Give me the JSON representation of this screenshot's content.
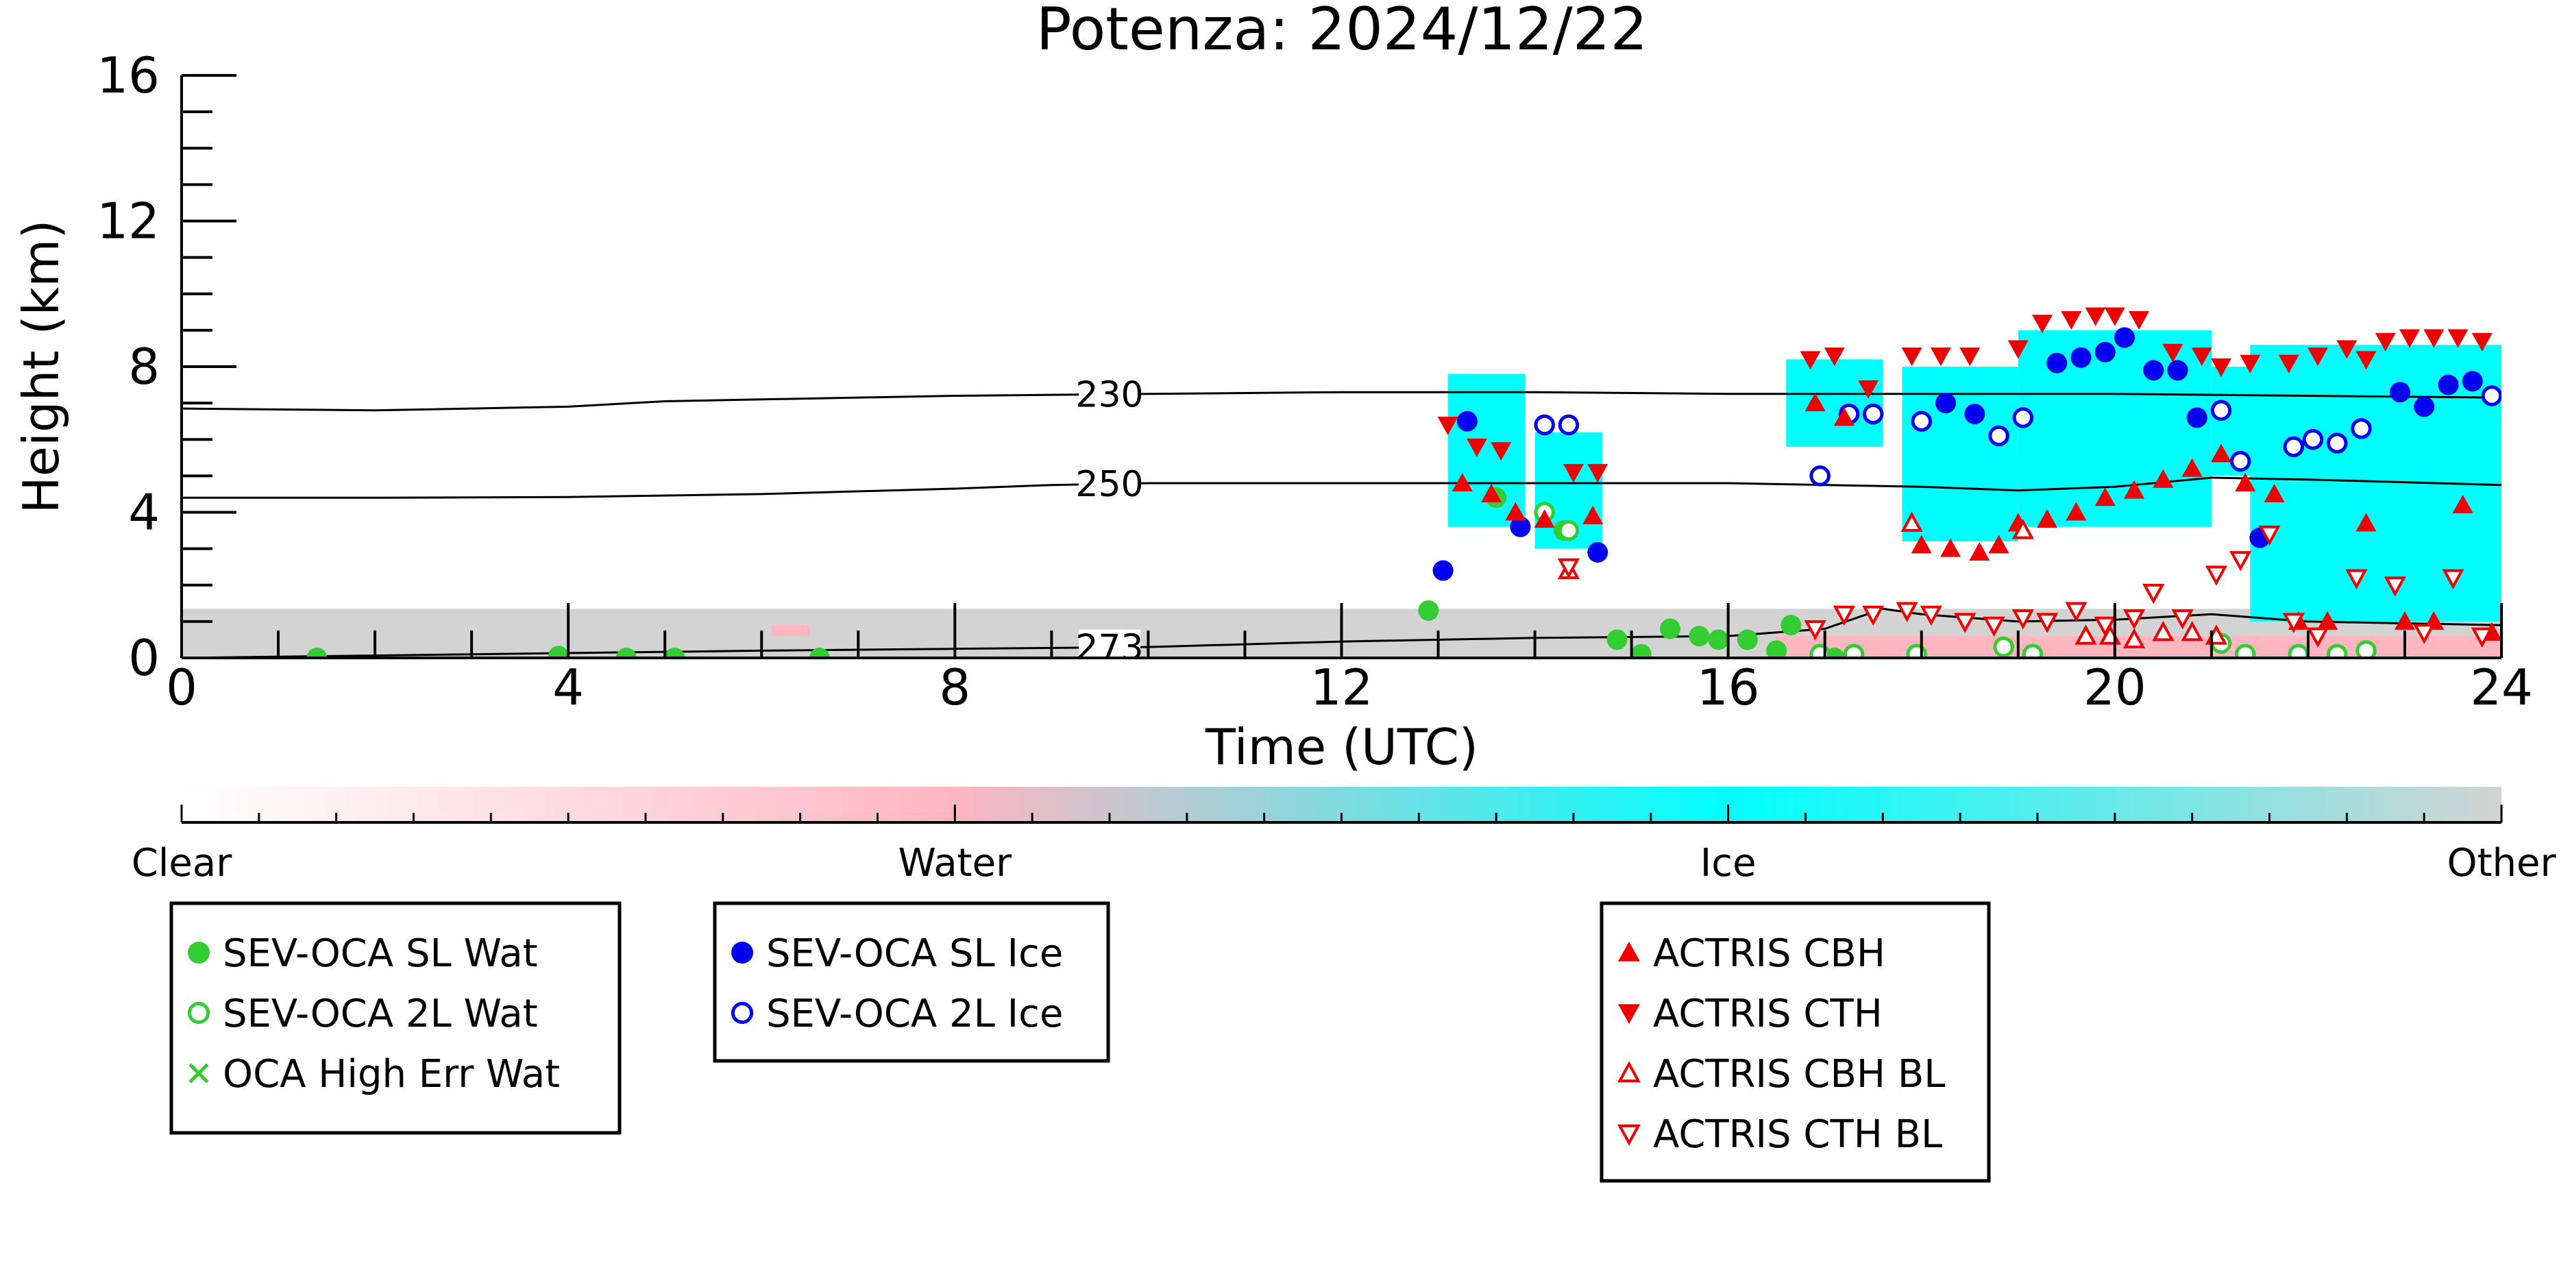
{
  "chart_data": {
    "type": "scatter",
    "title": "Potenza: 2024/12/22",
    "xlabel": "Time (UTC)",
    "ylabel": "Height (km)",
    "xlim": [
      0,
      24
    ],
    "ylim": [
      0,
      16
    ],
    "xticks": [
      0,
      4,
      8,
      12,
      16,
      20,
      24
    ],
    "xtick_labels": [
      "0",
      "4",
      "8",
      "12",
      "16",
      "20",
      "24"
    ],
    "yticks": [
      0,
      4,
      8,
      12,
      16
    ],
    "ytick_labels": [
      "0",
      "4",
      "8",
      "12",
      "16"
    ],
    "grid": false,
    "contours": [
      {
        "label": "230",
        "label_x": 9.6,
        "points": [
          [
            0,
            6.85
          ],
          [
            2,
            6.8
          ],
          [
            4,
            6.9
          ],
          [
            5,
            7.05
          ],
          [
            6,
            7.1
          ],
          [
            8,
            7.2
          ],
          [
            10,
            7.25
          ],
          [
            12,
            7.3
          ],
          [
            14,
            7.3
          ],
          [
            16,
            7.25
          ],
          [
            18,
            7.25
          ],
          [
            20,
            7.25
          ],
          [
            22,
            7.2
          ],
          [
            24,
            7.15
          ]
        ]
      },
      {
        "label": "250",
        "label_x": 9.6,
        "points": [
          [
            0,
            4.4
          ],
          [
            2,
            4.4
          ],
          [
            4,
            4.42
          ],
          [
            6,
            4.5
          ],
          [
            8,
            4.65
          ],
          [
            9,
            4.75
          ],
          [
            10,
            4.8
          ],
          [
            12,
            4.8
          ],
          [
            14,
            4.8
          ],
          [
            16,
            4.8
          ],
          [
            18,
            4.7
          ],
          [
            19,
            4.6
          ],
          [
            20,
            4.7
          ],
          [
            21,
            4.95
          ],
          [
            22,
            4.9
          ],
          [
            24,
            4.75
          ]
        ]
      },
      {
        "label": "273",
        "label_x": 9.6,
        "points": [
          [
            0,
            0.0
          ],
          [
            3,
            0.1
          ],
          [
            6,
            0.2
          ],
          [
            8,
            0.25
          ],
          [
            10,
            0.3
          ],
          [
            12,
            0.45
          ],
          [
            14,
            0.55
          ],
          [
            16,
            0.6
          ],
          [
            17,
            0.8
          ],
          [
            17.6,
            1.35
          ],
          [
            18,
            1.2
          ],
          [
            19,
            1.0
          ],
          [
            20,
            1.05
          ],
          [
            21,
            1.2
          ],
          [
            22,
            1.0
          ],
          [
            24,
            0.9
          ]
        ]
      }
    ],
    "cloud_class_regions": [
      {
        "class": "Other",
        "x0": 0,
        "x1": 24,
        "y0": 0,
        "y1": 1.35
      },
      {
        "class": "Ice",
        "x0": 13.1,
        "x1": 13.9,
        "y0": 3.6,
        "y1": 7.8
      },
      {
        "class": "Ice",
        "x0": 14.0,
        "x1": 14.7,
        "y0": 3.0,
        "y1": 6.2
      },
      {
        "class": "Ice",
        "x0": 16.6,
        "x1": 17.6,
        "y0": 5.8,
        "y1": 8.2
      },
      {
        "class": "Ice",
        "x0": 17.8,
        "x1": 19.0,
        "y0": 3.2,
        "y1": 8.0
      },
      {
        "class": "Ice",
        "x0": 19.0,
        "x1": 21.0,
        "y0": 3.6,
        "y1": 9.0
      },
      {
        "class": "Ice",
        "x0": 21.0,
        "x1": 21.4,
        "y0": 5.0,
        "y1": 8.0
      },
      {
        "class": "Ice",
        "x0": 21.4,
        "x1": 24.0,
        "y0": 1.0,
        "y1": 8.6
      },
      {
        "class": "Water",
        "x0": 6.1,
        "x1": 6.5,
        "y0": 0.6,
        "y1": 0.9
      },
      {
        "class": "Water",
        "x0": 16.5,
        "x1": 24.0,
        "y0": 0.0,
        "y1": 0.6
      }
    ],
    "series": [
      {
        "name": "SEV-OCA SL Wat",
        "marker": "filled-circle",
        "color": "#33cc33",
        "points": [
          [
            1.4,
            0.0
          ],
          [
            3.9,
            0.05
          ],
          [
            4.6,
            0.0
          ],
          [
            5.1,
            0.0
          ],
          [
            6.6,
            0.0
          ],
          [
            12.9,
            1.3
          ],
          [
            13.6,
            4.4
          ],
          [
            14.3,
            3.5
          ],
          [
            14.85,
            0.5
          ],
          [
            15.1,
            0.1
          ],
          [
            15.4,
            0.8
          ],
          [
            15.7,
            0.6
          ],
          [
            15.9,
            0.5
          ],
          [
            16.2,
            0.5
          ],
          [
            16.5,
            0.2
          ],
          [
            16.65,
            0.9
          ],
          [
            17.1,
            0.0
          ]
        ]
      },
      {
        "name": "SEV-OCA 2L Wat",
        "marker": "open-circle",
        "color": "#33cc33",
        "points": [
          [
            14.1,
            4.0
          ],
          [
            14.35,
            3.5
          ],
          [
            16.95,
            0.1
          ],
          [
            17.3,
            0.1
          ],
          [
            17.95,
            0.1
          ],
          [
            18.85,
            0.3
          ],
          [
            19.15,
            0.1
          ],
          [
            21.1,
            0.4
          ],
          [
            21.35,
            0.1
          ],
          [
            21.9,
            0.1
          ],
          [
            22.3,
            0.1
          ],
          [
            22.6,
            0.2
          ]
        ]
      },
      {
        "name": "OCA High Err Wat",
        "marker": "x",
        "color": "#33cc33",
        "points": []
      },
      {
        "name": "SEV-OCA SL Ice",
        "marker": "filled-circle",
        "color": "#0000ee",
        "points": [
          [
            13.05,
            2.4
          ],
          [
            13.3,
            6.5
          ],
          [
            13.85,
            3.6
          ],
          [
            14.65,
            2.9
          ],
          [
            18.25,
            7.0
          ],
          [
            18.55,
            6.7
          ],
          [
            19.4,
            8.1
          ],
          [
            19.65,
            8.25
          ],
          [
            19.9,
            8.4
          ],
          [
            20.1,
            8.8
          ],
          [
            20.4,
            7.9
          ],
          [
            20.65,
            7.9
          ],
          [
            20.85,
            6.6
          ],
          [
            21.5,
            3.3
          ],
          [
            22.95,
            7.3
          ],
          [
            23.2,
            6.9
          ],
          [
            23.45,
            7.5
          ],
          [
            23.7,
            7.6
          ]
        ]
      },
      {
        "name": "SEV-OCA 2L Ice",
        "marker": "open-circle",
        "color": "#0000ee",
        "points": [
          [
            14.1,
            6.4
          ],
          [
            14.35,
            6.4
          ],
          [
            16.95,
            5.0
          ],
          [
            17.25,
            6.7
          ],
          [
            17.5,
            6.7
          ],
          [
            18.0,
            6.5
          ],
          [
            18.8,
            6.1
          ],
          [
            19.05,
            6.6
          ],
          [
            21.1,
            6.8
          ],
          [
            21.3,
            5.4
          ],
          [
            21.85,
            5.8
          ],
          [
            22.05,
            6.0
          ],
          [
            22.3,
            5.9
          ],
          [
            22.55,
            6.3
          ],
          [
            23.9,
            7.2
          ]
        ]
      },
      {
        "name": "ACTRIS CBH",
        "marker": "triangle-up",
        "color": "#ee0000",
        "points": [
          [
            13.25,
            4.8
          ],
          [
            13.55,
            4.5
          ],
          [
            13.8,
            4.0
          ],
          [
            14.1,
            3.8
          ],
          [
            14.6,
            3.9
          ],
          [
            16.9,
            7.0
          ],
          [
            17.2,
            6.6
          ],
          [
            18.0,
            3.1
          ],
          [
            18.3,
            3.0
          ],
          [
            18.6,
            2.9
          ],
          [
            18.8,
            3.1
          ],
          [
            19.0,
            3.7
          ],
          [
            19.3,
            3.8
          ],
          [
            19.6,
            4.0
          ],
          [
            19.9,
            4.4
          ],
          [
            20.2,
            4.6
          ],
          [
            20.5,
            4.9
          ],
          [
            20.8,
            5.2
          ],
          [
            21.1,
            5.6
          ],
          [
            21.35,
            4.8
          ],
          [
            21.65,
            4.5
          ],
          [
            21.9,
            1.0
          ],
          [
            22.2,
            1.0
          ],
          [
            22.6,
            3.7
          ],
          [
            23.0,
            1.0
          ],
          [
            23.3,
            1.0
          ],
          [
            23.6,
            4.2
          ],
          [
            23.9,
            0.7
          ]
        ]
      },
      {
        "name": "ACTRIS CTH",
        "marker": "triangle-down",
        "color": "#ee0000",
        "points": [
          [
            13.1,
            6.4
          ],
          [
            13.4,
            5.8
          ],
          [
            13.65,
            5.7
          ],
          [
            14.4,
            5.1
          ],
          [
            14.65,
            5.1
          ],
          [
            16.85,
            8.2
          ],
          [
            17.1,
            8.3
          ],
          [
            17.45,
            7.4
          ],
          [
            17.9,
            8.3
          ],
          [
            18.2,
            8.3
          ],
          [
            18.5,
            8.3
          ],
          [
            19.0,
            8.5
          ],
          [
            19.25,
            9.2
          ],
          [
            19.55,
            9.3
          ],
          [
            19.8,
            9.4
          ],
          [
            20.0,
            9.4
          ],
          [
            20.25,
            9.3
          ],
          [
            20.6,
            8.4
          ],
          [
            20.9,
            8.3
          ],
          [
            21.1,
            8.0
          ],
          [
            21.4,
            8.1
          ],
          [
            21.8,
            8.1
          ],
          [
            22.1,
            8.3
          ],
          [
            22.4,
            8.5
          ],
          [
            22.6,
            8.2
          ],
          [
            22.8,
            8.7
          ],
          [
            23.05,
            8.8
          ],
          [
            23.3,
            8.8
          ],
          [
            23.55,
            8.8
          ],
          [
            23.8,
            8.7
          ]
        ]
      },
      {
        "name": "ACTRIS CBH BL",
        "marker": "open-triangle-up",
        "color": "#ee0000",
        "points": [
          [
            14.35,
            2.4
          ],
          [
            17.9,
            3.7
          ],
          [
            19.05,
            3.5
          ],
          [
            19.7,
            0.6
          ],
          [
            19.95,
            0.6
          ],
          [
            20.2,
            0.5
          ],
          [
            20.5,
            0.7
          ],
          [
            20.8,
            0.7
          ],
          [
            21.05,
            0.6
          ]
        ]
      },
      {
        "name": "ACTRIS CTH BL",
        "marker": "open-triangle-down",
        "color": "#ee0000",
        "points": [
          [
            14.35,
            2.5
          ],
          [
            16.9,
            0.8
          ],
          [
            17.2,
            1.2
          ],
          [
            17.5,
            1.2
          ],
          [
            17.85,
            1.3
          ],
          [
            18.1,
            1.2
          ],
          [
            18.45,
            1.0
          ],
          [
            18.75,
            0.9
          ],
          [
            19.05,
            1.1
          ],
          [
            19.3,
            1.0
          ],
          [
            19.6,
            1.3
          ],
          [
            19.9,
            0.9
          ],
          [
            20.2,
            1.1
          ],
          [
            20.4,
            1.8
          ],
          [
            20.7,
            1.1
          ],
          [
            21.05,
            2.3
          ],
          [
            21.3,
            2.7
          ],
          [
            21.6,
            3.4
          ],
          [
            21.85,
            1.0
          ],
          [
            22.1,
            0.6
          ],
          [
            22.5,
            2.2
          ],
          [
            22.9,
            2.0
          ],
          [
            23.2,
            0.7
          ],
          [
            23.5,
            2.2
          ],
          [
            23.8,
            0.6
          ]
        ]
      }
    ],
    "colorbar": {
      "labels": [
        "Clear",
        "Water",
        "Ice",
        "Other"
      ],
      "stops": [
        {
          "pos": 0,
          "color": "#ffffff"
        },
        {
          "pos": 0.333,
          "color": "#ffb6c1"
        },
        {
          "pos": 0.667,
          "color": "#00ffff"
        },
        {
          "pos": 1,
          "color": "#d3d3d3"
        }
      ]
    },
    "legends": [
      {
        "items": [
          {
            "label": "SEV-OCA SL Wat",
            "marker": "filled-circle",
            "color": "#33cc33"
          },
          {
            "label": "SEV-OCA 2L Wat",
            "marker": "open-circle",
            "color": "#33cc33"
          },
          {
            "label": "OCA High Err Wat",
            "marker": "x",
            "color": "#33cc33"
          }
        ]
      },
      {
        "items": [
          {
            "label": "SEV-OCA SL Ice",
            "marker": "filled-circle",
            "color": "#0000ee"
          },
          {
            "label": "SEV-OCA 2L Ice",
            "marker": "open-circle",
            "color": "#0000ee"
          }
        ]
      },
      {
        "items": [
          {
            "label": "ACTRIS CBH",
            "marker": "triangle-up",
            "color": "#ee0000"
          },
          {
            "label": "ACTRIS CTH",
            "marker": "triangle-down",
            "color": "#ee0000"
          },
          {
            "label": "ACTRIS CBH BL",
            "marker": "open-triangle-up",
            "color": "#ee0000"
          },
          {
            "label": "ACTRIS CTH BL",
            "marker": "open-triangle-down",
            "color": "#ee0000"
          }
        ]
      }
    ],
    "class_colors": {
      "Clear": "#ffffff",
      "Water": "#ffb6c1",
      "Ice": "#00ffff",
      "Other": "#d3d3d3"
    }
  }
}
